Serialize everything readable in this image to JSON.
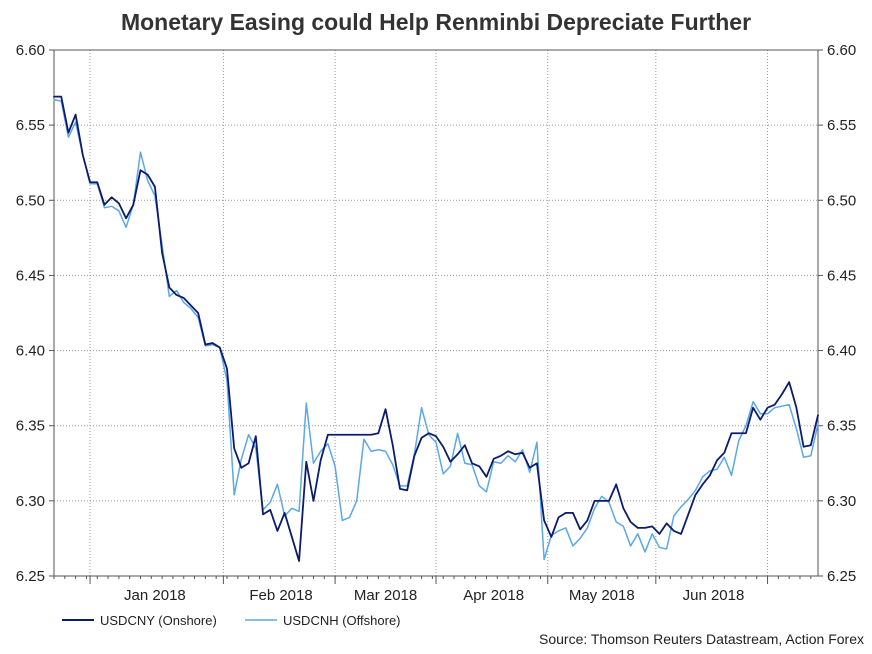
{
  "chart_data": {
    "type": "line",
    "title": "Monetary Easing could Help Renminbi Depreciate Further",
    "source": "Source: Thomson Reuters Datastream, Action Forex",
    "xlabel": "",
    "ylabel": "",
    "ylim": [
      6.25,
      6.6
    ],
    "yticks": [
      6.25,
      6.3,
      6.35,
      6.4,
      6.45,
      6.5,
      6.55,
      6.6
    ],
    "ytick_labels": [
      "6.25",
      "6.30",
      "6.35",
      "6.40",
      "6.45",
      "6.50",
      "6.55",
      "6.60"
    ],
    "x_start": "2017-12-01",
    "x_step_days": 1,
    "xlim_days": [
      0,
      212
    ],
    "month_boundaries_days": [
      10,
      47,
      78,
      106,
      137,
      167,
      198
    ],
    "month_labels": [
      {
        "label": "Jan 2018",
        "day": 28
      },
      {
        "label": "Feb 2018",
        "day": 63
      },
      {
        "label": "Mar 2018",
        "day": 92
      },
      {
        "label": "Apr 2018",
        "day": 122
      },
      {
        "label": "May 2018",
        "day": 152
      },
      {
        "label": "Jun 2018",
        "day": 183
      }
    ],
    "grid": true,
    "legend_position": "bottom-left",
    "series": [
      {
        "name": "USDCNY (Onshore)",
        "color": "#0b1b6e",
        "width": 1.8,
        "values": [
          [
            0,
            6.569
          ],
          [
            2,
            6.569
          ],
          [
            4,
            6.545
          ],
          [
            6,
            6.557
          ],
          [
            8,
            6.53
          ],
          [
            10,
            6.512
          ],
          [
            12,
            6.512
          ],
          [
            14,
            6.497
          ],
          [
            16,
            6.502
          ],
          [
            18,
            6.498
          ],
          [
            20,
            6.488
          ],
          [
            22,
            6.497
          ],
          [
            24,
            6.52
          ],
          [
            26,
            6.517
          ],
          [
            28,
            6.509
          ],
          [
            30,
            6.465
          ],
          [
            32,
            6.442
          ],
          [
            34,
            6.437
          ],
          [
            36,
            6.435
          ],
          [
            38,
            6.43
          ],
          [
            40,
            6.425
          ],
          [
            42,
            6.404
          ],
          [
            44,
            6.405
          ],
          [
            46,
            6.402
          ],
          [
            48,
            6.388
          ],
          [
            50,
            6.335
          ],
          [
            52,
            6.322
          ],
          [
            54,
            6.325
          ],
          [
            56,
            6.343
          ],
          [
            58,
            6.291
          ],
          [
            60,
            6.294
          ],
          [
            62,
            6.28
          ],
          [
            64,
            6.292
          ],
          [
            66,
            6.276
          ],
          [
            68,
            6.26
          ],
          [
            70,
            6.326
          ],
          [
            72,
            6.3
          ],
          [
            74,
            6.327
          ],
          [
            76,
            6.344
          ],
          [
            78,
            6.344
          ],
          [
            80,
            6.344
          ],
          [
            82,
            6.344
          ],
          [
            84,
            6.344
          ],
          [
            86,
            6.344
          ],
          [
            88,
            6.344
          ],
          [
            90,
            6.345
          ],
          [
            92,
            6.361
          ],
          [
            94,
            6.337
          ],
          [
            96,
            6.308
          ],
          [
            98,
            6.307
          ],
          [
            100,
            6.33
          ],
          [
            102,
            6.342
          ],
          [
            104,
            6.345
          ],
          [
            106,
            6.343
          ],
          [
            108,
            6.336
          ],
          [
            110,
            6.326
          ],
          [
            112,
            6.331
          ],
          [
            114,
            6.337
          ],
          [
            116,
            6.325
          ],
          [
            118,
            6.323
          ],
          [
            120,
            6.316
          ],
          [
            122,
            6.328
          ],
          [
            124,
            6.33
          ],
          [
            126,
            6.333
          ],
          [
            128,
            6.331
          ],
          [
            130,
            6.332
          ],
          [
            132,
            6.322
          ],
          [
            134,
            6.325
          ],
          [
            136,
            6.287
          ],
          [
            138,
            6.276
          ],
          [
            140,
            6.289
          ],
          [
            142,
            6.292
          ],
          [
            144,
            6.292
          ],
          [
            146,
            6.281
          ],
          [
            148,
            6.287
          ],
          [
            150,
            6.3
          ],
          [
            152,
            6.3
          ],
          [
            154,
            6.3
          ],
          [
            156,
            6.311
          ],
          [
            158,
            6.295
          ],
          [
            160,
            6.286
          ],
          [
            162,
            6.282
          ],
          [
            164,
            6.282
          ],
          [
            166,
            6.283
          ],
          [
            168,
            6.278
          ],
          [
            170,
            6.285
          ],
          [
            172,
            6.28
          ],
          [
            174,
            6.278
          ],
          [
            176,
            6.291
          ],
          [
            178,
            6.304
          ],
          [
            180,
            6.311
          ],
          [
            182,
            6.317
          ],
          [
            184,
            6.327
          ],
          [
            186,
            6.332
          ],
          [
            188,
            6.345
          ],
          [
            190,
            6.345
          ],
          [
            192,
            6.345
          ],
          [
            194,
            6.362
          ],
          [
            196,
            6.354
          ],
          [
            198,
            6.362
          ],
          [
            200,
            6.364
          ],
          [
            202,
            6.371
          ],
          [
            204,
            6.379
          ],
          [
            206,
            6.362
          ],
          [
            208,
            6.336
          ],
          [
            210,
            6.337
          ],
          [
            212,
            6.357
          ]
        ]
      },
      {
        "name": "USDCNH (Offshore)",
        "color": "#5aa8e6",
        "width": 1.5,
        "values": [
          [
            0,
            6.567
          ],
          [
            2,
            6.566
          ],
          [
            4,
            6.542
          ],
          [
            6,
            6.552
          ],
          [
            8,
            6.53
          ],
          [
            10,
            6.511
          ],
          [
            12,
            6.511
          ],
          [
            14,
            6.495
          ],
          [
            16,
            6.496
          ],
          [
            18,
            6.493
          ],
          [
            20,
            6.482
          ],
          [
            22,
            6.497
          ],
          [
            24,
            6.532
          ],
          [
            26,
            6.513
          ],
          [
            28,
            6.503
          ],
          [
            30,
            6.47
          ],
          [
            32,
            6.436
          ],
          [
            34,
            6.44
          ],
          [
            36,
            6.432
          ],
          [
            38,
            6.428
          ],
          [
            40,
            6.422
          ],
          [
            42,
            6.403
          ],
          [
            44,
            6.404
          ],
          [
            46,
            6.402
          ],
          [
            48,
            6.38
          ],
          [
            50,
            6.304
          ],
          [
            52,
            6.328
          ],
          [
            54,
            6.344
          ],
          [
            56,
            6.335
          ],
          [
            58,
            6.294
          ],
          [
            60,
            6.299
          ],
          [
            62,
            6.311
          ],
          [
            64,
            6.29
          ],
          [
            66,
            6.295
          ],
          [
            68,
            6.293
          ],
          [
            70,
            6.365
          ],
          [
            72,
            6.325
          ],
          [
            74,
            6.333
          ],
          [
            76,
            6.338
          ],
          [
            78,
            6.323
          ],
          [
            80,
            6.287
          ],
          [
            82,
            6.289
          ],
          [
            84,
            6.3
          ],
          [
            86,
            6.341
          ],
          [
            88,
            6.333
          ],
          [
            90,
            6.334
          ],
          [
            92,
            6.333
          ],
          [
            94,
            6.324
          ],
          [
            96,
            6.31
          ],
          [
            98,
            6.31
          ],
          [
            100,
            6.331
          ],
          [
            102,
            6.362
          ],
          [
            104,
            6.344
          ],
          [
            106,
            6.339
          ],
          [
            108,
            6.318
          ],
          [
            110,
            6.323
          ],
          [
            112,
            6.345
          ],
          [
            114,
            6.325
          ],
          [
            116,
            6.324
          ],
          [
            118,
            6.31
          ],
          [
            120,
            6.306
          ],
          [
            122,
            6.326
          ],
          [
            124,
            6.325
          ],
          [
            126,
            6.33
          ],
          [
            128,
            6.326
          ],
          [
            130,
            6.334
          ],
          [
            132,
            6.319
          ],
          [
            134,
            6.339
          ],
          [
            136,
            6.261
          ],
          [
            138,
            6.277
          ],
          [
            140,
            6.28
          ],
          [
            142,
            6.282
          ],
          [
            144,
            6.27
          ],
          [
            146,
            6.275
          ],
          [
            148,
            6.282
          ],
          [
            150,
            6.295
          ],
          [
            152,
            6.303
          ],
          [
            154,
            6.299
          ],
          [
            156,
            6.286
          ],
          [
            158,
            6.283
          ],
          [
            160,
            6.27
          ],
          [
            162,
            6.278
          ],
          [
            164,
            6.266
          ],
          [
            166,
            6.278
          ],
          [
            168,
            6.269
          ],
          [
            170,
            6.268
          ],
          [
            172,
            6.29
          ],
          [
            174,
            6.296
          ],
          [
            176,
            6.301
          ],
          [
            178,
            6.307
          ],
          [
            180,
            6.316
          ],
          [
            182,
            6.32
          ],
          [
            184,
            6.321
          ],
          [
            186,
            6.329
          ],
          [
            188,
            6.317
          ],
          [
            190,
            6.34
          ],
          [
            192,
            6.35
          ],
          [
            194,
            6.366
          ],
          [
            196,
            6.358
          ],
          [
            198,
            6.358
          ],
          [
            200,
            6.362
          ],
          [
            202,
            6.363
          ],
          [
            204,
            6.364
          ],
          [
            206,
            6.348
          ],
          [
            208,
            6.329
          ],
          [
            210,
            6.33
          ],
          [
            212,
            6.351
          ]
        ]
      }
    ]
  }
}
